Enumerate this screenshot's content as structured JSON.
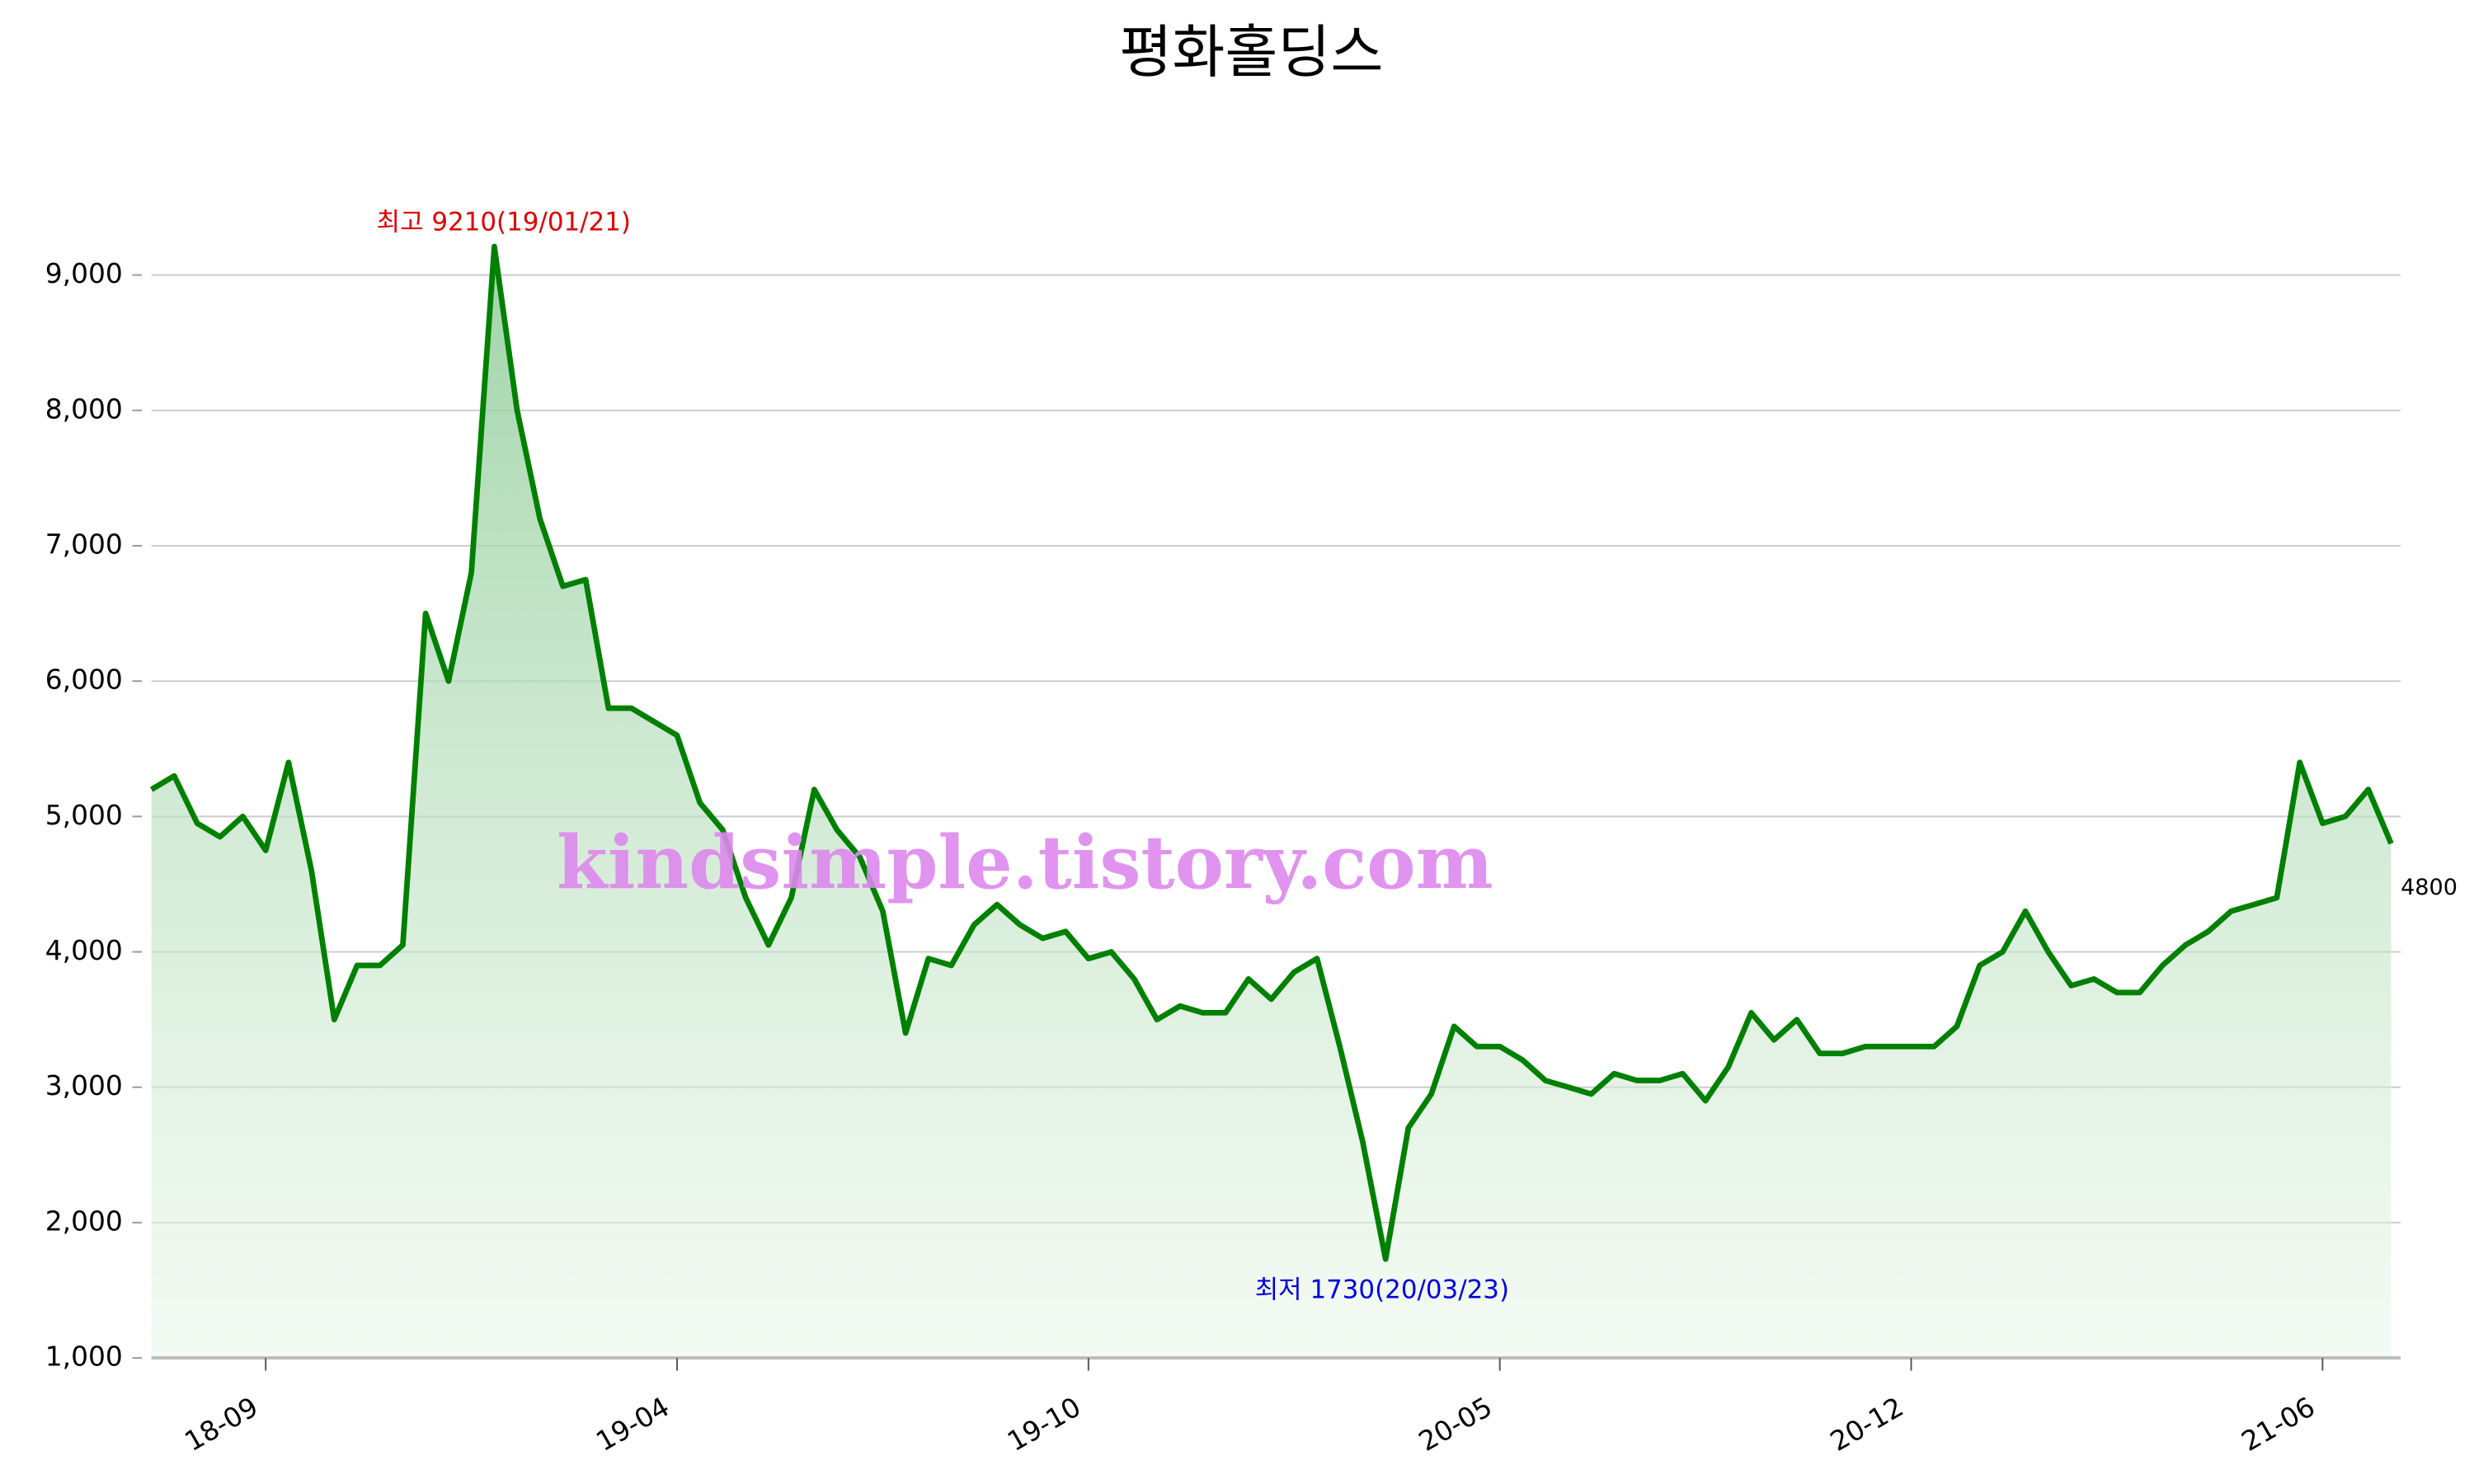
{
  "chart_data": {
    "type": "line",
    "title": "평화홀딩스",
    "watermark": "kindsimple.tistory.com",
    "annotations": {
      "max": "최고 9210(19/01/21)",
      "min": "최저 1730(20/03/23)"
    },
    "categories": [
      null,
      null,
      null,
      null,
      null,
      "18-09",
      null,
      null,
      null,
      null,
      null,
      null,
      null,
      null,
      null,
      null,
      null,
      null,
      null,
      null,
      null,
      null,
      null,
      "19-04",
      null,
      null,
      null,
      null,
      null,
      null,
      null,
      null,
      null,
      null,
      null,
      null,
      null,
      null,
      null,
      null,
      null,
      "19-10",
      null,
      null,
      null,
      null,
      null,
      null,
      null,
      null,
      null,
      null,
      null,
      null,
      null,
      null,
      null,
      null,
      null,
      "20-05",
      null,
      null,
      null,
      null,
      null,
      null,
      null,
      null,
      null,
      null,
      null,
      null,
      null,
      null,
      null,
      null,
      null,
      "20-12",
      null,
      null,
      null,
      null,
      null,
      null,
      null,
      null,
      null,
      null,
      null,
      null,
      null,
      null,
      null,
      null,
      null,
      "21-06",
      null,
      null,
      null
    ],
    "series": [
      {
        "name": "평화홀딩스",
        "color": "#008000",
        "values": [
          5200,
          5300,
          4950,
          4850,
          5000,
          4750,
          5400,
          4600,
          3500,
          3900,
          3900,
          4050,
          6500,
          6000,
          6800,
          9210,
          8000,
          7200,
          6700,
          6750,
          5800,
          5800,
          5700,
          5600,
          5100,
          4900,
          4400,
          4050,
          4400,
          5200,
          4900,
          4700,
          4300,
          3400,
          3950,
          3900,
          4200,
          4350,
          4200,
          4100,
          4150,
          3950,
          4000,
          3800,
          3500,
          3600,
          3550,
          3550,
          3800,
          3650,
          3850,
          3950,
          3300,
          2600,
          1730,
          2700,
          2950,
          3450,
          3300,
          3300,
          3200,
          3050,
          3000,
          2950,
          3100,
          3050,
          3050,
          3100,
          2900,
          3150,
          3550,
          3350,
          3500,
          3250,
          3250,
          3300,
          3300,
          3300,
          3300,
          3450,
          3900,
          4000,
          4300,
          4000,
          3750,
          3800,
          3700,
          3700,
          3900,
          4050,
          4150,
          4300,
          4350,
          4400,
          5400,
          4950,
          5000,
          5200,
          4800
        ]
      }
    ],
    "ylim": [
      1000,
      9300
    ],
    "yticks": [
      {
        "value": 1000,
        "label": "1,000"
      },
      {
        "value": 2000,
        "label": "2,000"
      },
      {
        "value": 3000,
        "label": "3,000"
      },
      {
        "value": 4000,
        "label": "4,000"
      },
      {
        "value": 5000,
        "label": "5,000"
      },
      {
        "value": 6000,
        "label": "6,000"
      },
      {
        "value": 7000,
        "label": "7,000"
      },
      {
        "value": 8000,
        "label": "8,000"
      },
      {
        "value": 9000,
        "label": "9,000"
      }
    ],
    "grid": true
  }
}
